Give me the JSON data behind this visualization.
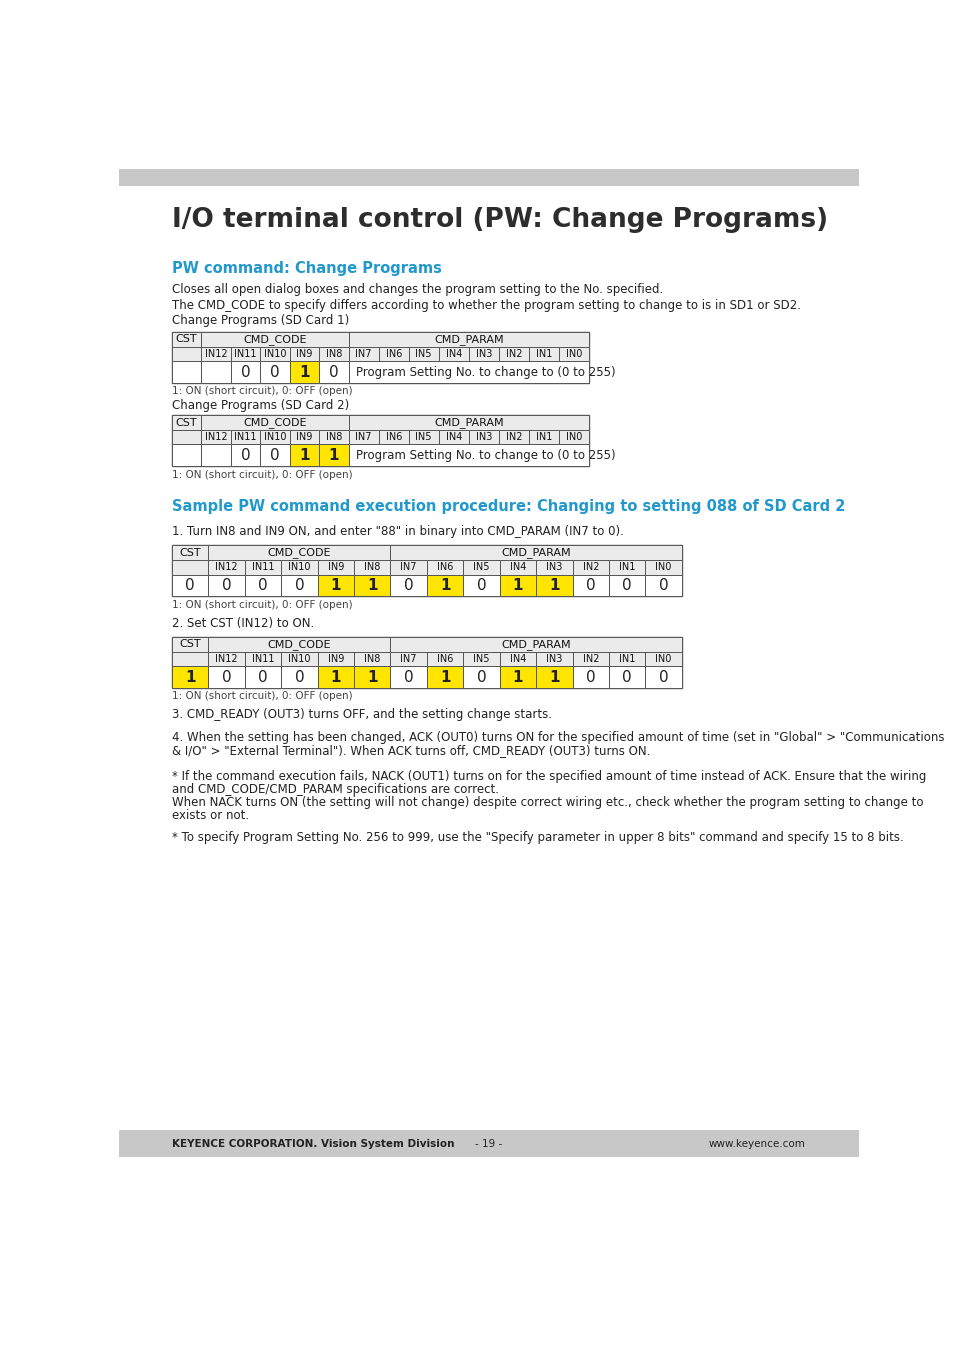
{
  "title": "I/O terminal control (PW: Change Programs)",
  "header_bar_color": "#c8c8c8",
  "footer_bar_color": "#c8c8c8",
  "footer_left": "KEYENCE CORPORATION. Vision System Division",
  "footer_center": "- 19 -",
  "footer_right": "www.keyence.com",
  "section_title": "PW command: Change Programs",
  "section_title_color": "#2299cc",
  "para1": "Closes all open dialog boxes and changes the program setting to the No. specified.",
  "para2": "The CMD_CODE to specify differs according to whether the program setting to change to is in SD1 or SD2.",
  "table1_label": "Change Programs (SD Card 1)",
  "table2_label": "Change Programs (SD Card 2)",
  "table_note": "1: ON (short circuit), 0: OFF (open)",
  "section2_title": "Sample PW command execution procedure: Changing to setting 088 of SD Card 2",
  "section2_title_color": "#2299cc",
  "step1_text": "1. Turn IN8 and IN9 ON, and enter \"88\" in binary into CMD_PARAM (IN7 to 0).",
  "step2_text": "2. Set CST (IN12) to ON.",
  "step3_text": "3. CMD_READY (OUT3) turns OFF, and the setting change starts.",
  "step4_line1": "4. When the setting has been changed, ACK (OUT0) turns ON for the specified amount of time (set in \"Global\" > \"Communications",
  "step4_line2": "& I/O\" > \"External Terminal\"). When ACK turns off, CMD_READY (OUT3) turns ON.",
  "note1_line1": "* If the command execution fails, NACK (OUT1) turns on for the specified amount of time instead of ACK. Ensure that the wiring",
  "note1_line2": "and CMD_CODE/CMD_PARAM specifications are correct.",
  "note1_line3": "When NACK turns ON (the setting will not change) despite correct wiring etc., check whether the program setting to change to",
  "note1_line4": "exists or not.",
  "note2_text": "* To specify Program Setting No. 256 to 999, use the \"Specify parameter in upper 8 bits\" command and specify 15 to 8 bits.",
  "yellow": "#FFE500",
  "white": "#FFFFFF",
  "light_gray": "#EBEBEB",
  "border_color": "#555555"
}
